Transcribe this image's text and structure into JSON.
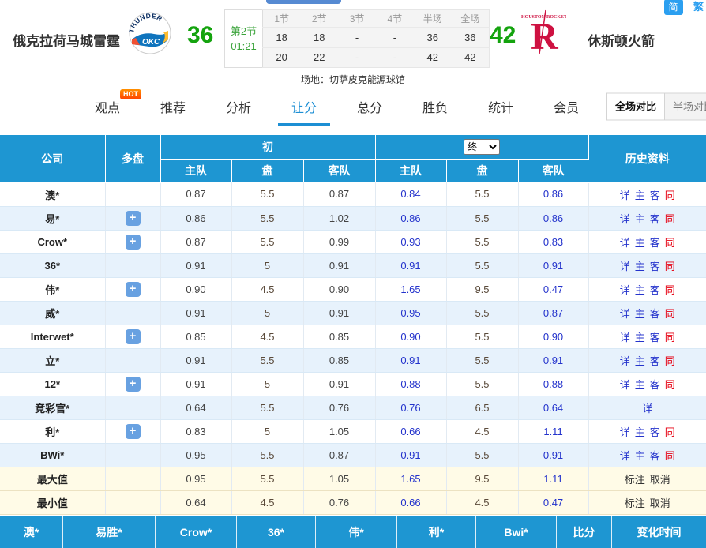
{
  "lang_toggle": {
    "simplified": "简",
    "traditional": "繁"
  },
  "scoreboard": {
    "home": {
      "name": "俄克拉荷马城雷霆",
      "score": "36"
    },
    "away": {
      "name": "休斯顿火箭",
      "score": "42"
    },
    "period": {
      "line1": "第2节",
      "line2": "01:21"
    },
    "quarters": {
      "headers": [
        "1节",
        "2节",
        "3节",
        "4节",
        "半场",
        "全场"
      ],
      "rows": [
        [
          "18",
          "18",
          "-",
          "-",
          "36",
          "36"
        ],
        [
          "20",
          "22",
          "-",
          "-",
          "42",
          "42"
        ]
      ]
    },
    "venue": "场地：切萨皮克能源球馆"
  },
  "nav": {
    "hot_label": "HOT",
    "tabs": [
      {
        "id": "viewpoint",
        "label": "观点",
        "hot": true
      },
      {
        "id": "recommend",
        "label": "推荐"
      },
      {
        "id": "analysis",
        "label": "分析"
      },
      {
        "id": "handicap",
        "label": "让分",
        "active": true
      },
      {
        "id": "totals",
        "label": "总分"
      },
      {
        "id": "winloss",
        "label": "胜负"
      },
      {
        "id": "stats",
        "label": "统计"
      },
      {
        "id": "member",
        "label": "会员"
      }
    ],
    "compare": [
      {
        "id": "full-game-compare",
        "label": "全场对比",
        "active": true
      },
      {
        "id": "half-game-compare",
        "label": "半场对比"
      }
    ]
  },
  "odds_table": {
    "headers": {
      "company": "公司",
      "multi": "多盘",
      "initial": "初",
      "final": "终",
      "home": "主队",
      "handicap": "盘",
      "away": "客队",
      "history": "历史资料"
    },
    "plus_icon": "+",
    "history_links": {
      "detail": "详",
      "home": "主",
      "away": "客",
      "same": "同"
    },
    "value_links": {
      "mark": "标注",
      "cancel": "取消"
    },
    "rows": [
      {
        "company": "澳*",
        "plus": false,
        "values": [
          "0.87",
          "5.5",
          "0.87",
          "0.84",
          "5.5",
          "0.86"
        ],
        "history": "full"
      },
      {
        "company": "易*",
        "plus": true,
        "values": [
          "0.86",
          "5.5",
          "1.02",
          "0.86",
          "5.5",
          "0.86"
        ],
        "history": "full"
      },
      {
        "company": "Crow*",
        "plus": true,
        "values": [
          "0.87",
          "5.5",
          "0.99",
          "0.93",
          "5.5",
          "0.83"
        ],
        "history": "full"
      },
      {
        "company": "36*",
        "plus": false,
        "values": [
          "0.91",
          "5",
          "0.91",
          "0.91",
          "5.5",
          "0.91"
        ],
        "history": "full"
      },
      {
        "company": "伟*",
        "plus": true,
        "values": [
          "0.90",
          "4.5",
          "0.90",
          "1.65",
          "9.5",
          "0.47"
        ],
        "history": "full"
      },
      {
        "company": "威*",
        "plus": false,
        "values": [
          "0.91",
          "5",
          "0.91",
          "0.95",
          "5.5",
          "0.87"
        ],
        "history": "full"
      },
      {
        "company": "Interwet*",
        "plus": true,
        "values": [
          "0.85",
          "4.5",
          "0.85",
          "0.90",
          "5.5",
          "0.90"
        ],
        "history": "full"
      },
      {
        "company": "立*",
        "plus": false,
        "values": [
          "0.91",
          "5.5",
          "0.85",
          "0.91",
          "5.5",
          "0.91"
        ],
        "history": "full"
      },
      {
        "company": "12*",
        "plus": true,
        "values": [
          "0.91",
          "5",
          "0.91",
          "0.88",
          "5.5",
          "0.88"
        ],
        "history": "full"
      },
      {
        "company": "竞彩官*",
        "plus": false,
        "values": [
          "0.64",
          "5.5",
          "0.76",
          "0.76",
          "6.5",
          "0.64"
        ],
        "history": "detail"
      },
      {
        "company": "利*",
        "plus": true,
        "values": [
          "0.83",
          "5",
          "1.05",
          "0.66",
          "4.5",
          "1.11"
        ],
        "history": "full"
      },
      {
        "company": "BWi*",
        "plus": false,
        "values": [
          "0.95",
          "5.5",
          "0.87",
          "0.91",
          "5.5",
          "0.91"
        ],
        "history": "full"
      },
      {
        "company": "最大值",
        "plus": false,
        "values": [
          "0.95",
          "5.5",
          "1.05",
          "1.65",
          "9.5",
          "1.11"
        ],
        "history": "marks",
        "minmax": true
      },
      {
        "company": "最小值",
        "plus": false,
        "values": [
          "0.64",
          "4.5",
          "0.76",
          "0.66",
          "4.5",
          "0.47"
        ],
        "history": "marks",
        "minmax": true
      }
    ]
  },
  "bottom_bar": {
    "items": [
      "澳*",
      "易胜*",
      "Crow*",
      "36*",
      "伟*",
      "利*",
      "Bwi*",
      "比分",
      "变化时间"
    ]
  }
}
